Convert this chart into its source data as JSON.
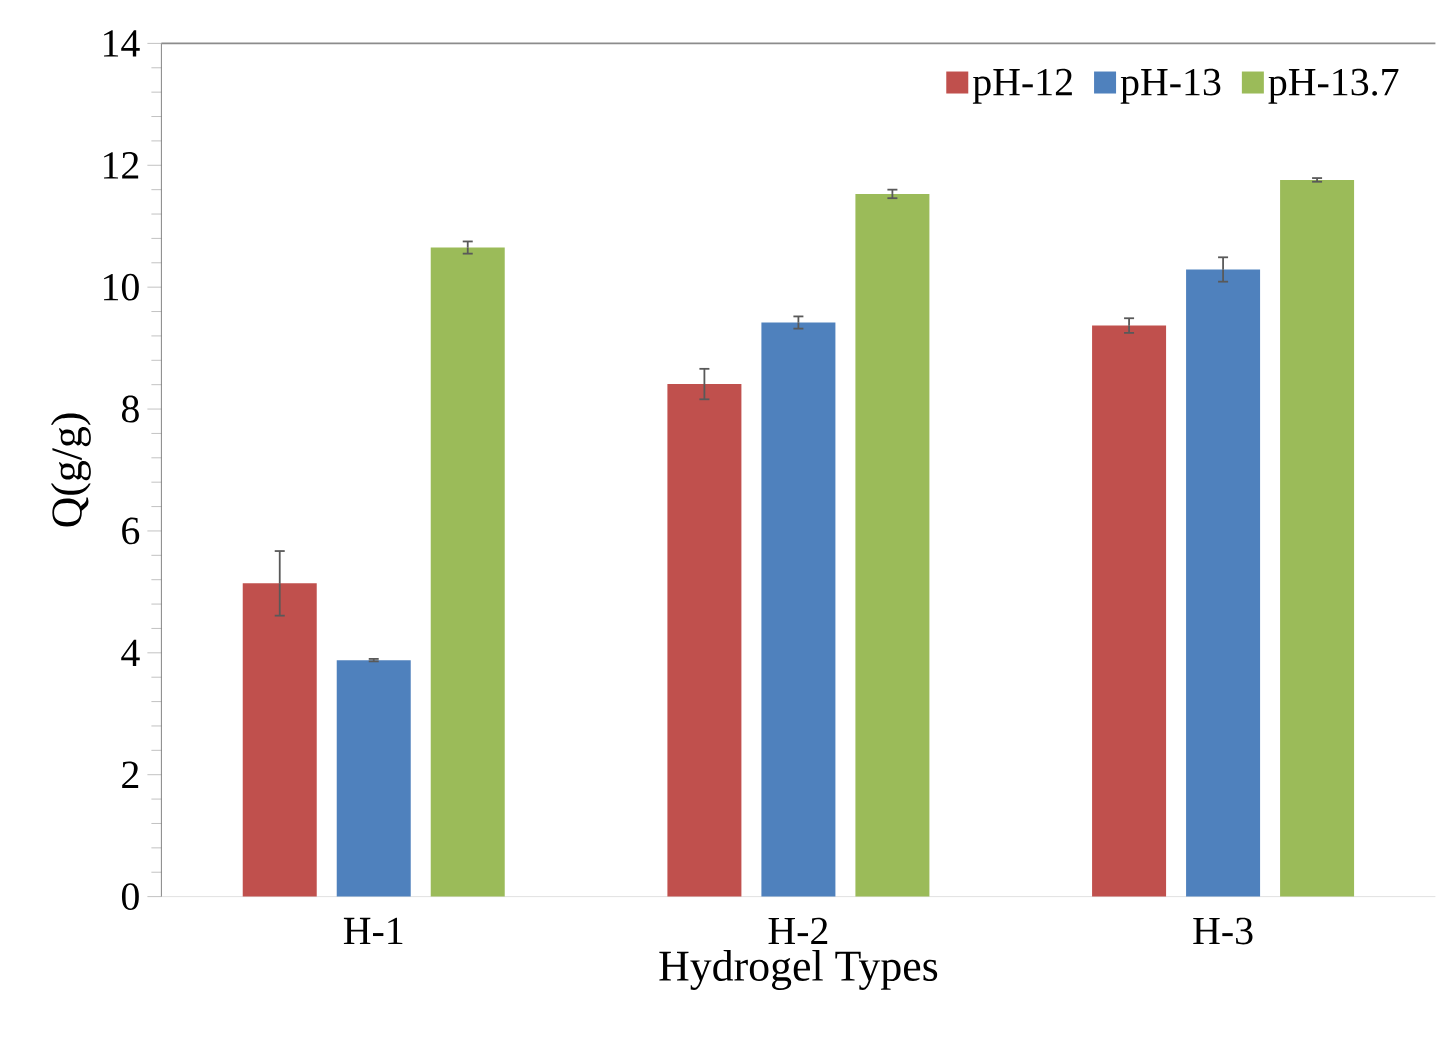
{
  "chart_data": {
    "type": "bar",
    "xlabel": "Hydrogel Types",
    "ylabel": "Q(g/g)",
    "categories": [
      "H-1",
      "H-2",
      "H-3"
    ],
    "series": [
      {
        "name": "pH-12",
        "color": "#c0504d",
        "values": [
          5.14,
          8.41,
          9.37
        ],
        "errors": [
          0.53,
          0.25,
          0.12
        ]
      },
      {
        "name": "pH-13",
        "color": "#4f81bd",
        "values": [
          3.88,
          9.42,
          10.29
        ],
        "errors": [
          0.02,
          0.1,
          0.2
        ]
      },
      {
        "name": "pH-13.7",
        "color": "#9bbb59",
        "values": [
          10.65,
          11.53,
          11.76
        ],
        "errors": [
          0.1,
          0.07,
          0.03
        ]
      }
    ],
    "ylim": [
      0,
      14
    ],
    "yticks": [
      0,
      2,
      4,
      6,
      8,
      10,
      12,
      14
    ],
    "legend": "top right"
  }
}
